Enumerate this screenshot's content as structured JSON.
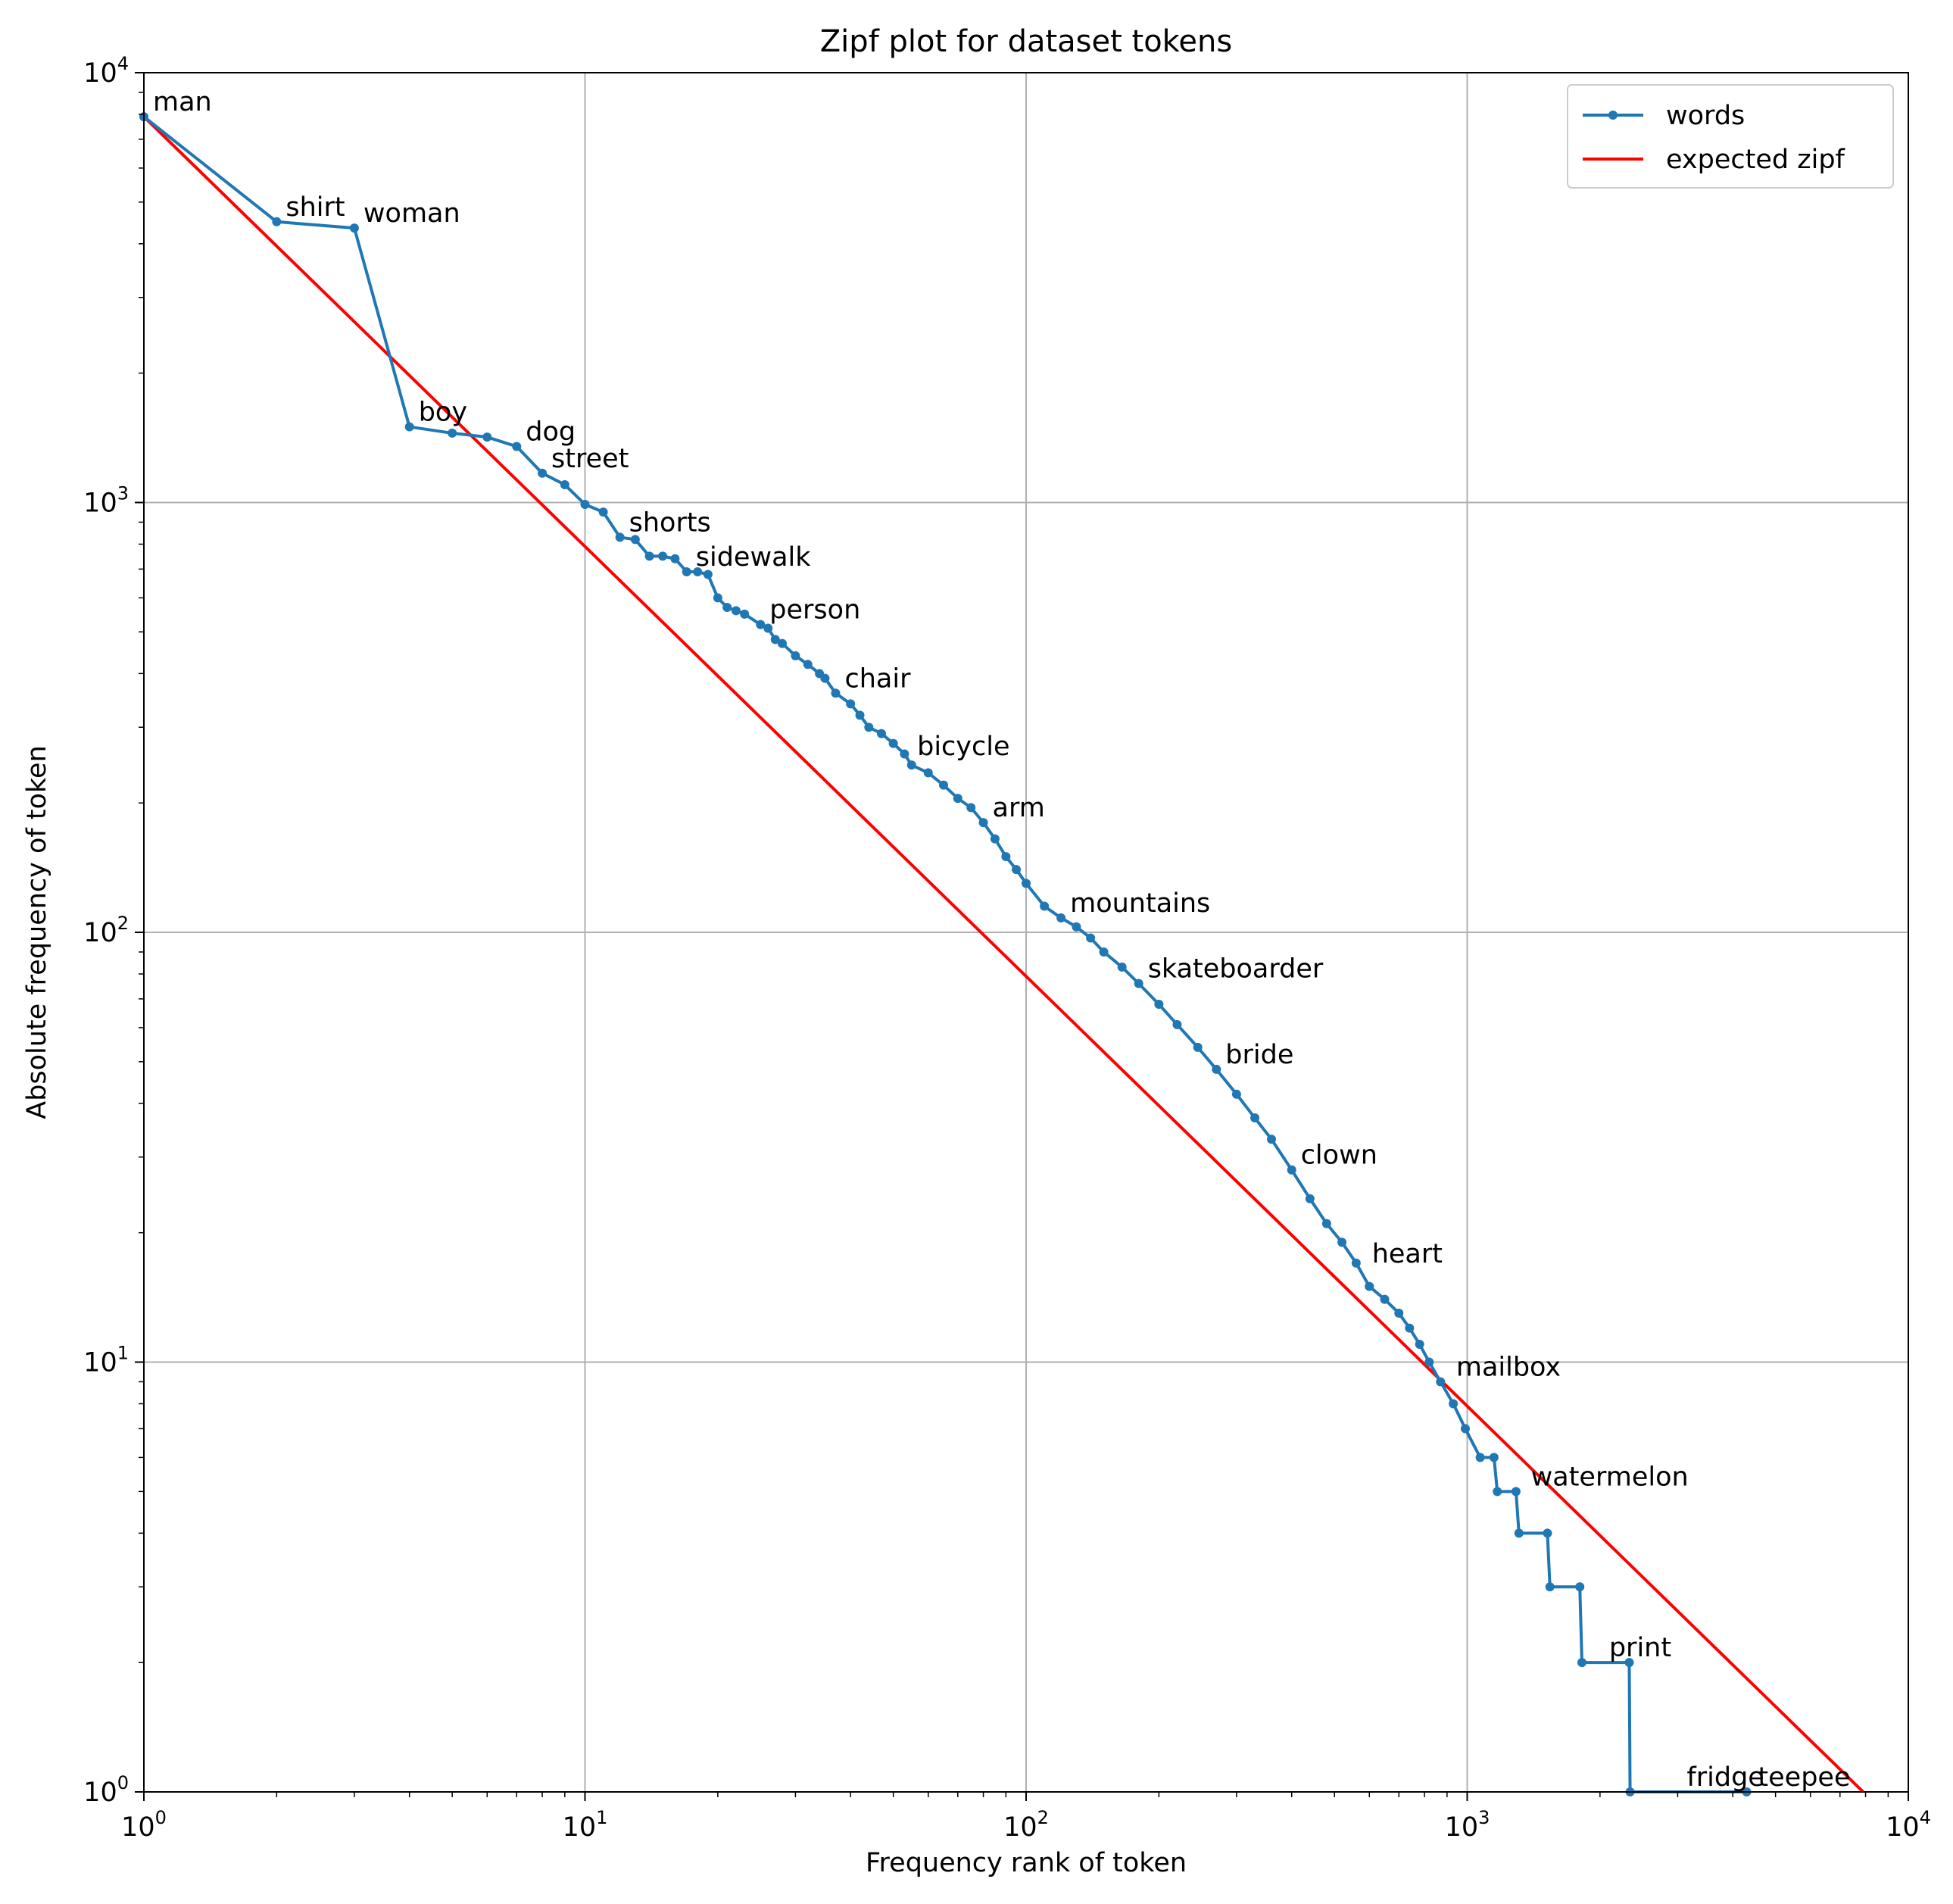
{
  "chart_data": {
    "type": "line",
    "title": "Zipf plot for dataset tokens",
    "xlabel": "Frequency rank of token",
    "ylabel": "Absolute frequency of token",
    "xscale": "log",
    "yscale": "log",
    "xlim": [
      1,
      10000
    ],
    "ylim": [
      1,
      10000
    ],
    "grid": true,
    "legend_position": "top-right",
    "x_ticks": [
      {
        "base": "10",
        "exp": "0",
        "value": 1
      },
      {
        "base": "10",
        "exp": "1",
        "value": 10
      },
      {
        "base": "10",
        "exp": "2",
        "value": 100
      },
      {
        "base": "10",
        "exp": "3",
        "value": 1000
      },
      {
        "base": "10",
        "exp": "4",
        "value": 10000
      }
    ],
    "y_ticks": [
      {
        "base": "10",
        "exp": "0",
        "value": 1
      },
      {
        "base": "10",
        "exp": "1",
        "value": 10
      },
      {
        "base": "10",
        "exp": "2",
        "value": 100
      },
      {
        "base": "10",
        "exp": "3",
        "value": 1000
      },
      {
        "base": "10",
        "exp": "4",
        "value": 10000
      }
    ],
    "series": [
      {
        "name": "words",
        "color": "#1f77b4",
        "marker": "circle",
        "points": [
          [
            1,
            7900
          ],
          [
            2,
            4500
          ],
          [
            3,
            4350
          ],
          [
            4,
            1500
          ],
          [
            5,
            1450
          ],
          [
            6,
            1420
          ],
          [
            7,
            1350
          ],
          [
            8,
            1170
          ],
          [
            9,
            1100
          ],
          [
            10,
            990
          ],
          [
            11,
            950
          ],
          [
            12,
            830
          ],
          [
            13,
            820
          ],
          [
            14,
            750
          ],
          [
            15,
            750
          ],
          [
            16,
            740
          ],
          [
            17,
            690
          ],
          [
            18,
            690
          ],
          [
            19,
            680
          ],
          [
            20,
            600
          ],
          [
            21,
            570
          ],
          [
            22,
            560
          ],
          [
            23,
            550
          ],
          [
            25,
            520
          ],
          [
            26,
            510
          ],
          [
            27,
            480
          ],
          [
            28,
            470
          ],
          [
            30,
            440
          ],
          [
            32,
            420
          ],
          [
            34,
            400
          ],
          [
            35,
            390
          ],
          [
            37,
            360
          ],
          [
            40,
            340
          ],
          [
            42,
            320
          ],
          [
            44,
            300
          ],
          [
            47,
            290
          ],
          [
            50,
            275
          ],
          [
            53,
            260
          ],
          [
            55,
            245
          ],
          [
            60,
            235
          ],
          [
            65,
            220
          ],
          [
            70,
            205
          ],
          [
            75,
            195
          ],
          [
            80,
            180
          ],
          [
            85,
            165
          ],
          [
            90,
            150
          ],
          [
            95,
            140
          ],
          [
            100,
            130
          ],
          [
            110,
            115
          ],
          [
            120,
            108
          ],
          [
            130,
            103
          ],
          [
            140,
            97
          ],
          [
            150,
            90
          ],
          [
            165,
            83
          ],
          [
            180,
            76
          ],
          [
            200,
            68
          ],
          [
            220,
            61
          ],
          [
            245,
            54
          ],
          [
            270,
            48
          ],
          [
            300,
            42
          ],
          [
            330,
            37
          ],
          [
            360,
            33
          ],
          [
            400,
            28
          ],
          [
            440,
            24
          ],
          [
            480,
            21
          ],
          [
            520,
            19
          ],
          [
            560,
            17
          ],
          [
            600,
            15
          ],
          [
            650,
            14
          ],
          [
            700,
            13
          ],
          [
            740,
            12
          ],
          [
            780,
            11
          ],
          [
            820,
            10
          ],
          [
            870,
            9
          ],
          [
            930,
            8
          ],
          [
            990,
            7
          ],
          [
            1070,
            6
          ],
          [
            1150,
            6
          ],
          [
            1170,
            5
          ],
          [
            1290,
            5
          ],
          [
            1310,
            4
          ],
          [
            1520,
            4
          ],
          [
            1540,
            3
          ],
          [
            1800,
            3
          ],
          [
            1820,
            2
          ],
          [
            2330,
            2
          ],
          [
            2340,
            1
          ],
          [
            4300,
            1
          ]
        ]
      },
      {
        "name": "expected zipf",
        "color": "#ff0000",
        "marker": "none",
        "points": [
          [
            1,
            7900
          ],
          [
            7900,
            1
          ]
        ]
      }
    ],
    "annotations": [
      {
        "text": "man",
        "x": 1,
        "y": 7900
      },
      {
        "text": "shirt",
        "x": 2,
        "y": 4500
      },
      {
        "text": "woman",
        "x": 3,
        "y": 4350
      },
      {
        "text": "boy",
        "x": 4,
        "y": 1500
      },
      {
        "text": "dog",
        "x": 7,
        "y": 1350
      },
      {
        "text": "street",
        "x": 8,
        "y": 1170
      },
      {
        "text": "shorts",
        "x": 12,
        "y": 830
      },
      {
        "text": "sidewalk",
        "x": 17,
        "y": 690
      },
      {
        "text": "person",
        "x": 25,
        "y": 520
      },
      {
        "text": "chair",
        "x": 37,
        "y": 360
      },
      {
        "text": "bicycle",
        "x": 54,
        "y": 250
      },
      {
        "text": "arm",
        "x": 80,
        "y": 180
      },
      {
        "text": "mountains",
        "x": 120,
        "y": 108
      },
      {
        "text": "skateboarder",
        "x": 180,
        "y": 76
      },
      {
        "text": "bride",
        "x": 270,
        "y": 48
      },
      {
        "text": "clown",
        "x": 400,
        "y": 28
      },
      {
        "text": "heart",
        "x": 580,
        "y": 16.5
      },
      {
        "text": "mailbox",
        "x": 900,
        "y": 9
      },
      {
        "text": "watermelon",
        "x": 1330,
        "y": 5
      },
      {
        "text": "print",
        "x": 2000,
        "y": 2
      },
      {
        "text": "fridge",
        "x": 3000,
        "y": 1
      },
      {
        "text": "teepee",
        "x": 4350,
        "y": 1
      }
    ]
  }
}
